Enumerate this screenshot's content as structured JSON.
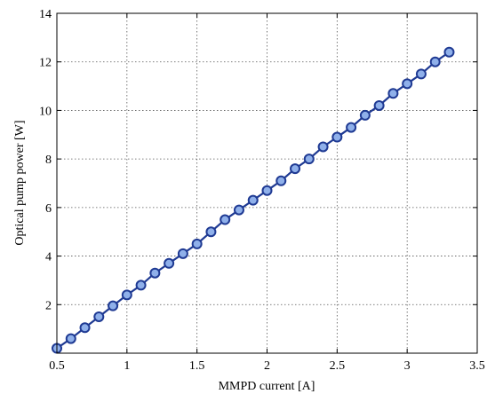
{
  "chart_data": {
    "type": "line",
    "title": "",
    "xlabel": "MMPD current [A]",
    "ylabel": "Optical pump power [W]",
    "xlim": [
      0.5,
      3.5
    ],
    "ylim": [
      0,
      14
    ],
    "xticks": [
      "0.5",
      "1",
      "1.5",
      "2",
      "2.5",
      "3",
      "3.5"
    ],
    "yticks": [
      "2",
      "4",
      "6",
      "8",
      "10",
      "12",
      "14"
    ],
    "grid": true,
    "legend": "none",
    "series": [
      {
        "line_color": "#1f3a93",
        "marker": "circle",
        "marker_fill": "#8fb0ea",
        "x": [
          0.5,
          0.6,
          0.7,
          0.8,
          0.9,
          1.0,
          1.1,
          1.2,
          1.3,
          1.4,
          1.5,
          1.6,
          1.7,
          1.8,
          1.9,
          2.0,
          2.1,
          2.2,
          2.3,
          2.4,
          2.5,
          2.6,
          2.7,
          2.8,
          2.9,
          3.0,
          3.1,
          3.2,
          3.3
        ],
        "y": [
          0.2,
          0.6,
          1.05,
          1.5,
          1.95,
          2.4,
          2.8,
          3.3,
          3.7,
          4.1,
          4.5,
          5.0,
          5.5,
          5.9,
          6.3,
          6.7,
          7.1,
          7.6,
          8.0,
          8.5,
          8.9,
          9.3,
          9.8,
          10.2,
          10.7,
          11.1,
          11.5,
          12.0,
          12.4
        ]
      }
    ]
  }
}
